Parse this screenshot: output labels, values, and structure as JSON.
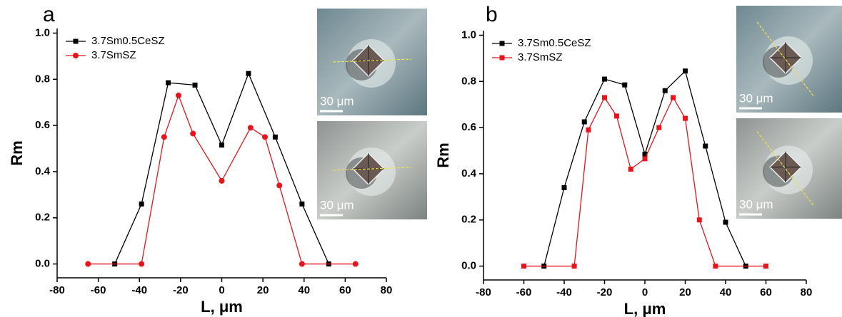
{
  "chart_data": [
    {
      "type": "line",
      "panel_label": "a",
      "x_label": "L, μm",
      "y_label": "Rm",
      "legend": "upper left",
      "grid": false,
      "xlim": [
        -80,
        80
      ],
      "xticks": [
        -80,
        -60,
        -40,
        -20,
        0,
        20,
        40,
        60,
        80
      ],
      "ylim": [
        -0.06,
        1.02
      ],
      "yticks": [
        {
          "value": 0,
          "label": "0.0"
        },
        0.2,
        0.4,
        0.6,
        0.8,
        {
          "value": 1,
          "label": "1.0"
        }
      ],
      "series": [
        {
          "name": "3.7Sm0.5CeSZ",
          "color": "#000000",
          "marker": "square",
          "x": [
            -52,
            -39,
            -26,
            -13,
            0,
            13,
            26,
            39,
            52
          ],
          "values": [
            0,
            0.26,
            0.785,
            0.775,
            0.515,
            0.825,
            0.55,
            0.26,
            0
          ]
        },
        {
          "name": "3.7SmSZ",
          "color": "#e8141c",
          "marker": "circle",
          "x": [
            -65,
            -39,
            -28,
            -21,
            -14,
            0,
            14,
            21,
            28,
            39,
            65
          ],
          "values": [
            0,
            0,
            0.55,
            0.73,
            0.565,
            0.36,
            0.59,
            0.55,
            0.34,
            0,
            0
          ]
        }
      ],
      "inset_labels": [
        "30 μm",
        "30 μm"
      ]
    },
    {
      "type": "line",
      "panel_label": "b",
      "x_label": "L, μm",
      "y_label": "Rm",
      "legend": "upper left",
      "grid": false,
      "xlim": [
        -80,
        80
      ],
      "xticks": [
        -80,
        -60,
        -40,
        -20,
        0,
        20,
        40,
        60,
        80
      ],
      "ylim": [
        -0.06,
        1.02
      ],
      "yticks": [
        {
          "value": 0,
          "label": "0.0"
        },
        0.2,
        0.4,
        0.6,
        0.8,
        {
          "value": 1,
          "label": "1.0"
        }
      ],
      "series": [
        {
          "name": "3.7Sm0.5CeSZ",
          "color": "#000000",
          "marker": "square",
          "x": [
            -50,
            -40,
            -30,
            -20,
            -10,
            0,
            10,
            20,
            30,
            40,
            50
          ],
          "values": [
            0,
            0.34,
            0.625,
            0.81,
            0.785,
            0.485,
            0.76,
            0.845,
            0.52,
            0.19,
            0
          ]
        },
        {
          "name": "3.7SmSZ",
          "color": "#e8141c",
          "marker": "square",
          "x": [
            -60,
            -35,
            -28,
            -20,
            -14,
            -7,
            0,
            7,
            14,
            20,
            27,
            35,
            60
          ],
          "values": [
            0,
            0,
            0.59,
            0.73,
            0.65,
            0.42,
            0.465,
            0.6,
            0.73,
            0.64,
            0.2,
            0,
            0
          ]
        }
      ],
      "inset_labels": [
        "30 μm",
        "30 μm"
      ]
    }
  ]
}
